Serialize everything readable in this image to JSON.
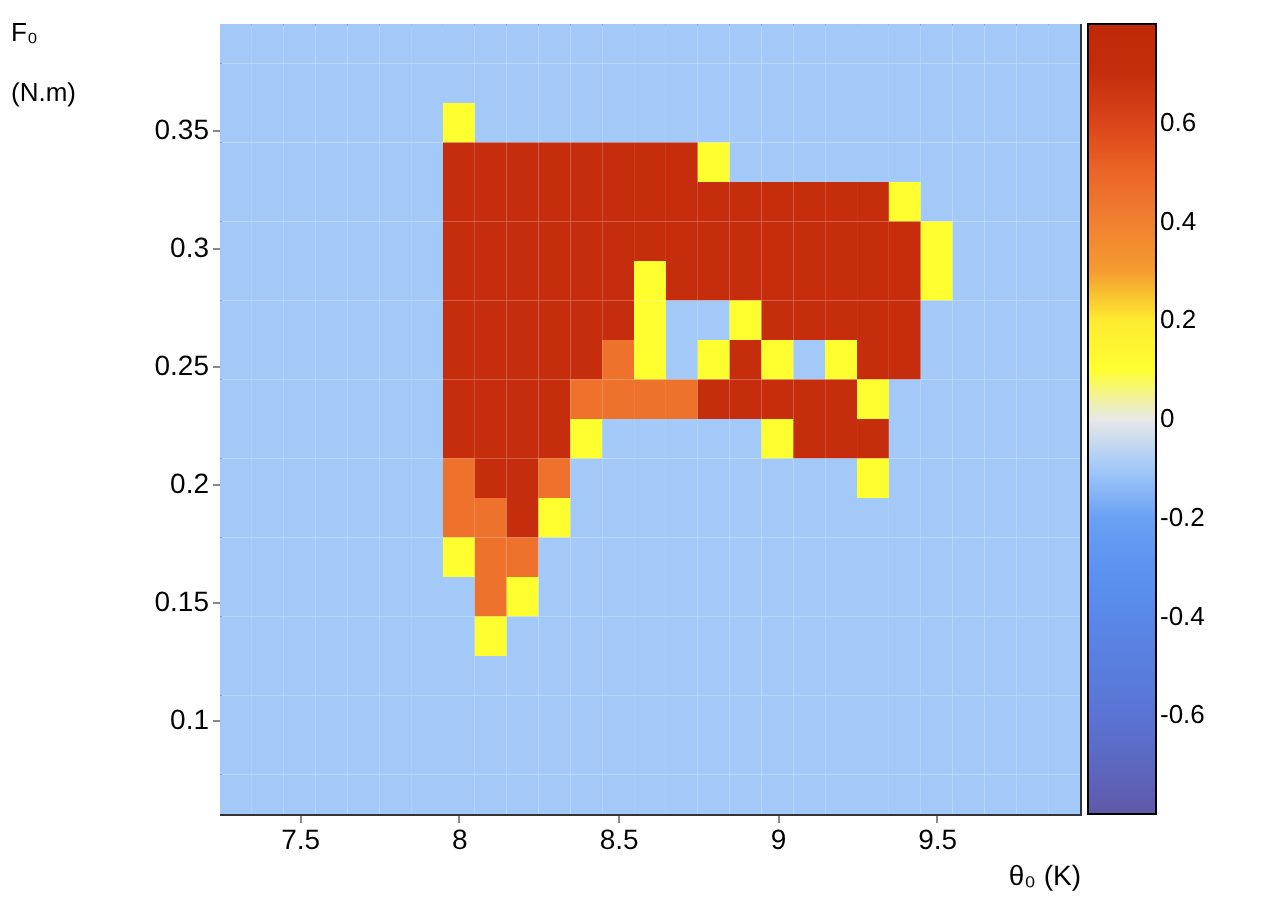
{
  "chart_data": {
    "type": "heatmap",
    "xlabel": "θ₀ (K)",
    "ylabel": "F₀ (N.m)",
    "x": [
      7.3,
      7.4,
      7.5,
      7.6,
      7.7,
      7.8,
      7.9,
      8.0,
      8.1,
      8.2,
      8.3,
      8.4,
      8.5,
      8.6,
      8.7,
      8.8,
      8.9,
      9.0,
      9.1,
      9.2,
      9.3,
      9.4,
      9.5,
      9.6,
      9.7,
      9.8,
      9.9
    ],
    "y": [
      0.3866,
      0.3699,
      0.3531,
      0.3364,
      0.3196,
      0.3029,
      0.2861,
      0.2694,
      0.2526,
      0.2359,
      0.2191,
      0.2024,
      0.1856,
      0.1689,
      0.1521,
      0.1354,
      0.1186,
      0.1019,
      0.0851,
      0.0684
    ],
    "xlim": [
      7.25,
      9.95
    ],
    "xticks": [
      7.5,
      8,
      8.5,
      9,
      9.5
    ],
    "ylim": [
      0.06,
      0.395
    ],
    "yticks": [
      0.1,
      0.15,
      0.2,
      0.25,
      0.3,
      0.35
    ],
    "clim": [
      -0.8,
      0.8
    ],
    "cticks": [
      -0.6,
      -0.4,
      -0.2,
      0,
      0.2,
      0.4,
      0.6
    ],
    "grid": false,
    "cells": [
      [
        -0.1,
        -0.1,
        -0.1,
        -0.1,
        -0.1,
        -0.1,
        -0.1,
        -0.1,
        -0.1,
        -0.1,
        -0.1,
        -0.1,
        -0.1,
        -0.1,
        -0.1,
        -0.1,
        -0.1,
        -0.1,
        -0.1,
        -0.1,
        -0.1,
        -0.1,
        -0.1,
        -0.1,
        -0.1,
        -0.1,
        -0.1
      ],
      [
        -0.1,
        -0.1,
        -0.1,
        -0.1,
        -0.1,
        -0.1,
        -0.1,
        -0.1,
        -0.1,
        -0.1,
        -0.1,
        -0.1,
        -0.1,
        -0.1,
        -0.1,
        -0.1,
        -0.1,
        -0.1,
        -0.1,
        -0.1,
        -0.1,
        -0.1,
        -0.1,
        -0.1,
        -0.1,
        -0.1,
        -0.1
      ],
      [
        -0.1,
        -0.1,
        -0.1,
        -0.1,
        -0.1,
        -0.1,
        -0.1,
        0.1,
        -0.1,
        -0.1,
        -0.1,
        -0.1,
        -0.1,
        -0.1,
        -0.1,
        -0.1,
        -0.1,
        -0.1,
        -0.1,
        -0.1,
        -0.1,
        -0.1,
        -0.1,
        -0.1,
        -0.1,
        -0.1,
        -0.1
      ],
      [
        -0.1,
        -0.1,
        -0.1,
        -0.1,
        -0.1,
        -0.1,
        -0.1,
        0.7,
        0.7,
        0.7,
        0.7,
        0.7,
        0.7,
        0.7,
        0.7,
        0.1,
        -0.1,
        -0.1,
        -0.1,
        -0.1,
        -0.1,
        -0.1,
        -0.1,
        -0.1,
        -0.1,
        -0.1,
        -0.1
      ],
      [
        -0.1,
        -0.1,
        -0.1,
        -0.1,
        -0.1,
        -0.1,
        -0.1,
        0.7,
        0.7,
        0.7,
        0.7,
        0.7,
        0.7,
        0.7,
        0.7,
        0.7,
        0.7,
        0.7,
        0.7,
        0.7,
        0.7,
        0.1,
        -0.1,
        -0.1,
        -0.1,
        -0.1,
        -0.1
      ],
      [
        -0.1,
        -0.1,
        -0.1,
        -0.1,
        -0.1,
        -0.1,
        -0.1,
        0.7,
        0.7,
        0.7,
        0.7,
        0.7,
        0.7,
        0.7,
        0.7,
        0.7,
        0.7,
        0.7,
        0.7,
        0.7,
        0.7,
        0.7,
        0.1,
        -0.1,
        -0.1,
        -0.1,
        -0.1
      ],
      [
        -0.1,
        -0.1,
        -0.1,
        -0.1,
        -0.1,
        -0.1,
        -0.1,
        0.7,
        0.7,
        0.7,
        0.7,
        0.7,
        0.7,
        0.1,
        0.7,
        0.7,
        0.7,
        0.7,
        0.7,
        0.7,
        0.7,
        0.7,
        0.1,
        -0.1,
        -0.1,
        -0.1,
        -0.1
      ],
      [
        -0.1,
        -0.1,
        -0.1,
        -0.1,
        -0.1,
        -0.1,
        -0.1,
        0.7,
        0.7,
        0.7,
        0.7,
        0.7,
        0.7,
        0.1,
        -0.1,
        -0.1,
        0.1,
        0.7,
        0.7,
        0.7,
        0.7,
        0.7,
        -0.1,
        -0.1,
        -0.1,
        -0.1,
        -0.1
      ],
      [
        -0.1,
        -0.1,
        -0.1,
        -0.1,
        -0.1,
        -0.1,
        -0.1,
        0.7,
        0.7,
        0.7,
        0.7,
        0.7,
        0.45,
        0.1,
        -0.1,
        0.1,
        0.7,
        0.1,
        -0.1,
        0.1,
        0.7,
        0.7,
        -0.1,
        -0.1,
        -0.1,
        -0.1,
        -0.1
      ],
      [
        -0.1,
        -0.1,
        -0.1,
        -0.1,
        -0.1,
        -0.1,
        -0.1,
        0.7,
        0.7,
        0.7,
        0.7,
        0.45,
        0.45,
        0.45,
        0.45,
        0.7,
        0.7,
        0.7,
        0.7,
        0.7,
        0.1,
        -0.1,
        -0.1,
        -0.1,
        -0.1,
        -0.1,
        -0.1
      ],
      [
        -0.1,
        -0.1,
        -0.1,
        -0.1,
        -0.1,
        -0.1,
        -0.1,
        0.7,
        0.7,
        0.7,
        0.7,
        0.1,
        -0.1,
        -0.1,
        -0.1,
        -0.1,
        -0.1,
        0.1,
        0.7,
        0.7,
        0.7,
        -0.1,
        -0.1,
        -0.1,
        -0.1,
        -0.1,
        -0.1
      ],
      [
        -0.1,
        -0.1,
        -0.1,
        -0.1,
        -0.1,
        -0.1,
        -0.1,
        0.45,
        0.7,
        0.7,
        0.45,
        -0.1,
        -0.1,
        -0.1,
        -0.1,
        -0.1,
        -0.1,
        -0.1,
        -0.1,
        -0.1,
        0.1,
        -0.1,
        -0.1,
        -0.1,
        -0.1,
        -0.1,
        -0.1
      ],
      [
        -0.1,
        -0.1,
        -0.1,
        -0.1,
        -0.1,
        -0.1,
        -0.1,
        0.45,
        0.45,
        0.7,
        0.1,
        -0.1,
        -0.1,
        -0.1,
        -0.1,
        -0.1,
        -0.1,
        -0.1,
        -0.1,
        -0.1,
        -0.1,
        -0.1,
        -0.1,
        -0.1,
        -0.1,
        -0.1,
        -0.1
      ],
      [
        -0.1,
        -0.1,
        -0.1,
        -0.1,
        -0.1,
        -0.1,
        -0.1,
        0.1,
        0.45,
        0.45,
        -0.1,
        -0.1,
        -0.1,
        -0.1,
        -0.1,
        -0.1,
        -0.1,
        -0.1,
        -0.1,
        -0.1,
        -0.1,
        -0.1,
        -0.1,
        -0.1,
        -0.1,
        -0.1,
        -0.1
      ],
      [
        -0.1,
        -0.1,
        -0.1,
        -0.1,
        -0.1,
        -0.1,
        -0.1,
        -0.1,
        0.45,
        0.1,
        -0.1,
        -0.1,
        -0.1,
        -0.1,
        -0.1,
        -0.1,
        -0.1,
        -0.1,
        -0.1,
        -0.1,
        -0.1,
        -0.1,
        -0.1,
        -0.1,
        -0.1,
        -0.1,
        -0.1
      ],
      [
        -0.1,
        -0.1,
        -0.1,
        -0.1,
        -0.1,
        -0.1,
        -0.1,
        -0.1,
        0.1,
        -0.1,
        -0.1,
        -0.1,
        -0.1,
        -0.1,
        -0.1,
        -0.1,
        -0.1,
        -0.1,
        -0.1,
        -0.1,
        -0.1,
        -0.1,
        -0.1,
        -0.1,
        -0.1,
        -0.1,
        -0.1
      ],
      [
        -0.1,
        -0.1,
        -0.1,
        -0.1,
        -0.1,
        -0.1,
        -0.1,
        -0.1,
        -0.1,
        -0.1,
        -0.1,
        -0.1,
        -0.1,
        -0.1,
        -0.1,
        -0.1,
        -0.1,
        -0.1,
        -0.1,
        -0.1,
        -0.1,
        -0.1,
        -0.1,
        -0.1,
        -0.1,
        -0.1,
        -0.1
      ],
      [
        -0.1,
        -0.1,
        -0.1,
        -0.1,
        -0.1,
        -0.1,
        -0.1,
        -0.1,
        -0.1,
        -0.1,
        -0.1,
        -0.1,
        -0.1,
        -0.1,
        -0.1,
        -0.1,
        -0.1,
        -0.1,
        -0.1,
        -0.1,
        -0.1,
        -0.1,
        -0.1,
        -0.1,
        -0.1,
        -0.1,
        -0.1
      ],
      [
        -0.1,
        -0.1,
        -0.1,
        -0.1,
        -0.1,
        -0.1,
        -0.1,
        -0.1,
        -0.1,
        -0.1,
        -0.1,
        -0.1,
        -0.1,
        -0.1,
        -0.1,
        -0.1,
        -0.1,
        -0.1,
        -0.1,
        -0.1,
        -0.1,
        -0.1,
        -0.1,
        -0.1,
        -0.1,
        -0.1,
        -0.1
      ],
      [
        -0.1,
        -0.1,
        -0.1,
        -0.1,
        -0.1,
        -0.1,
        -0.1,
        -0.1,
        -0.1,
        -0.1,
        -0.1,
        -0.1,
        -0.1,
        -0.1,
        -0.1,
        -0.1,
        -0.1,
        -0.1,
        -0.1,
        -0.1,
        -0.1,
        -0.1,
        -0.1,
        -0.1,
        -0.1,
        -0.1,
        -0.1
      ]
    ]
  }
}
